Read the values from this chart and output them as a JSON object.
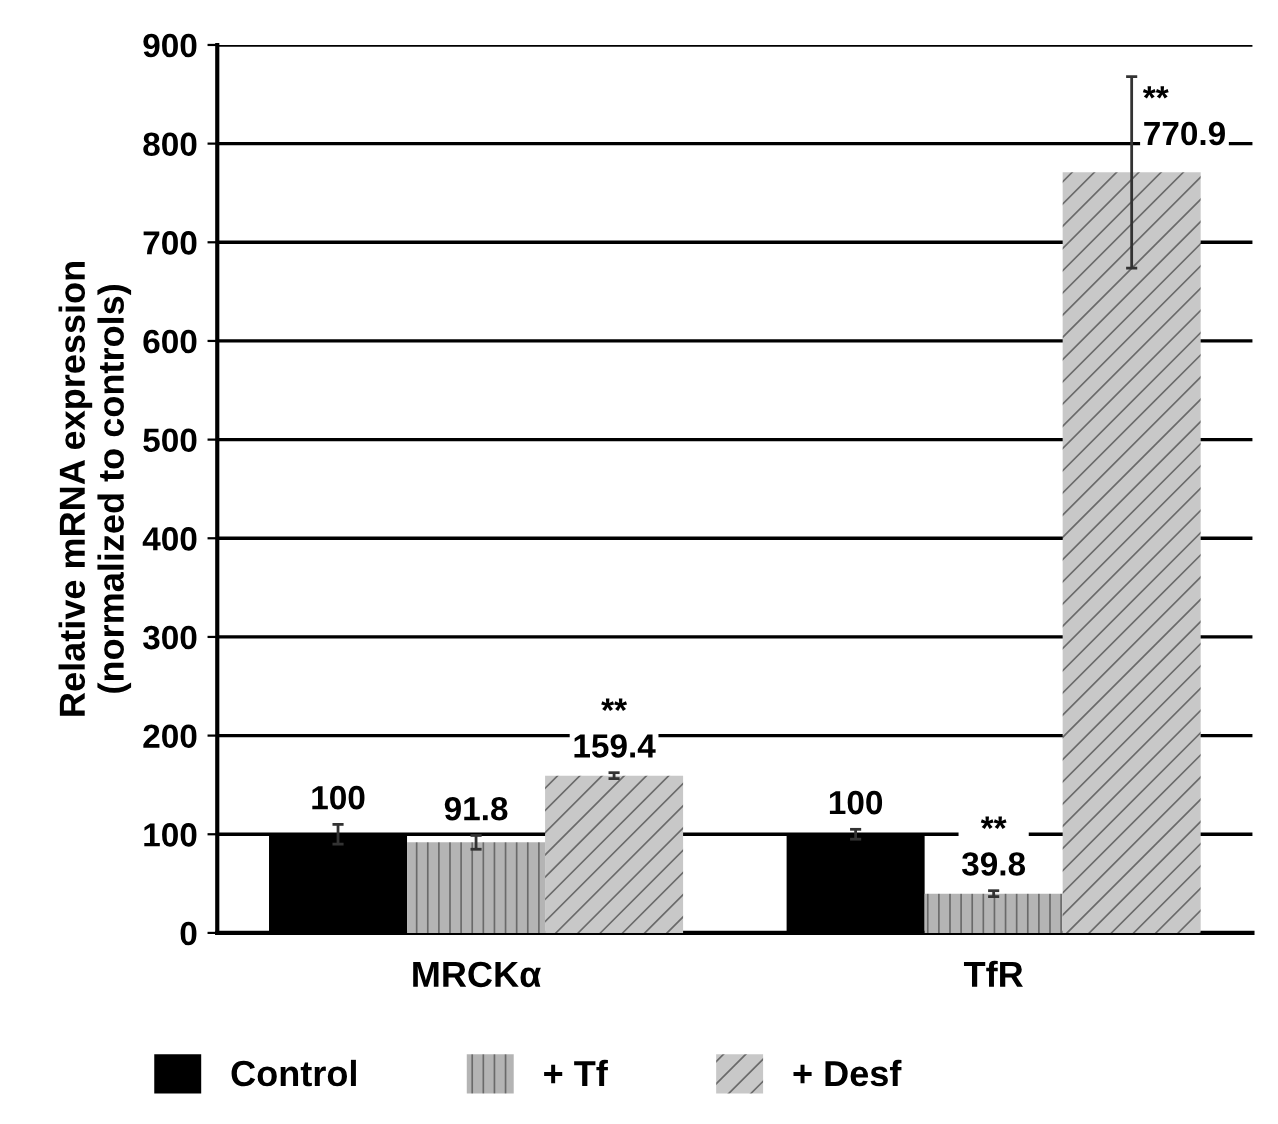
{
  "chart_data": {
    "type": "bar",
    "ylabel": "Relative mRNA expression\n(normalized to controls)",
    "categories": [
      "MRCKα",
      "TfR"
    ],
    "series": [
      {
        "name": "Control",
        "color": "#000000",
        "values": [
          100,
          100
        ],
        "errors": [
          10,
          5
        ],
        "value_labels": [
          "100",
          "100"
        ]
      },
      {
        "name": "+ Tf",
        "color": "#b4b4b4",
        "values": [
          91.8,
          39.8
        ],
        "errors": [
          7,
          3
        ],
        "value_labels": [
          "91.8",
          "**\n39.8"
        ]
      },
      {
        "name": "+ Desf",
        "color": "#c8c8c8",
        "values": [
          159.4,
          770.9
        ],
        "errors": [
          3,
          97
        ],
        "value_labels": [
          "**\n159.4",
          "**\n770.9"
        ]
      }
    ],
    "ylim": [
      0,
      900
    ],
    "yticks": [
      0,
      100,
      200,
      300,
      400,
      500,
      600,
      700,
      800,
      900
    ],
    "grid": "y",
    "legend": "bottom"
  }
}
